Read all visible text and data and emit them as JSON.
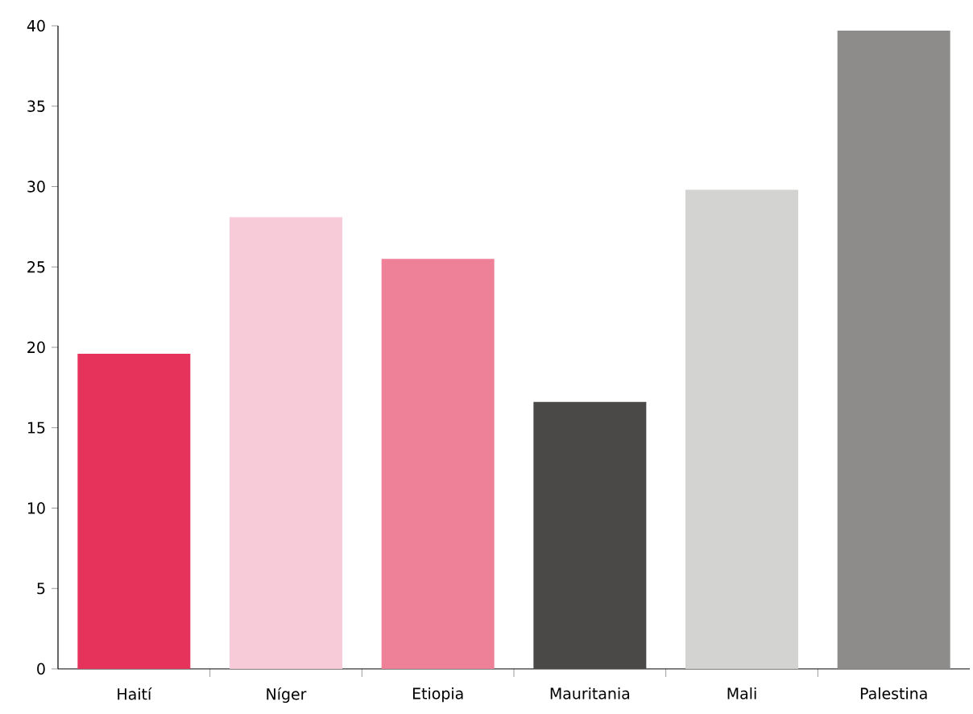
{
  "chart_data": {
    "type": "bar",
    "categories": [
      "Haití",
      "Níger",
      "Etiopia",
      "Mauritania",
      "Mali",
      "Palestina"
    ],
    "values": [
      19.6,
      28.1,
      25.5,
      16.6,
      29.8,
      39.7
    ],
    "colors": [
      "#e5335c",
      "#f7cbd7",
      "#ee8098",
      "#4a4948",
      "#d3d3d1",
      "#8d8c8a"
    ],
    "ylim": [
      0,
      40
    ],
    "yticks": [
      0,
      5,
      10,
      15,
      20,
      25,
      30,
      35,
      40
    ],
    "grid": false
  }
}
